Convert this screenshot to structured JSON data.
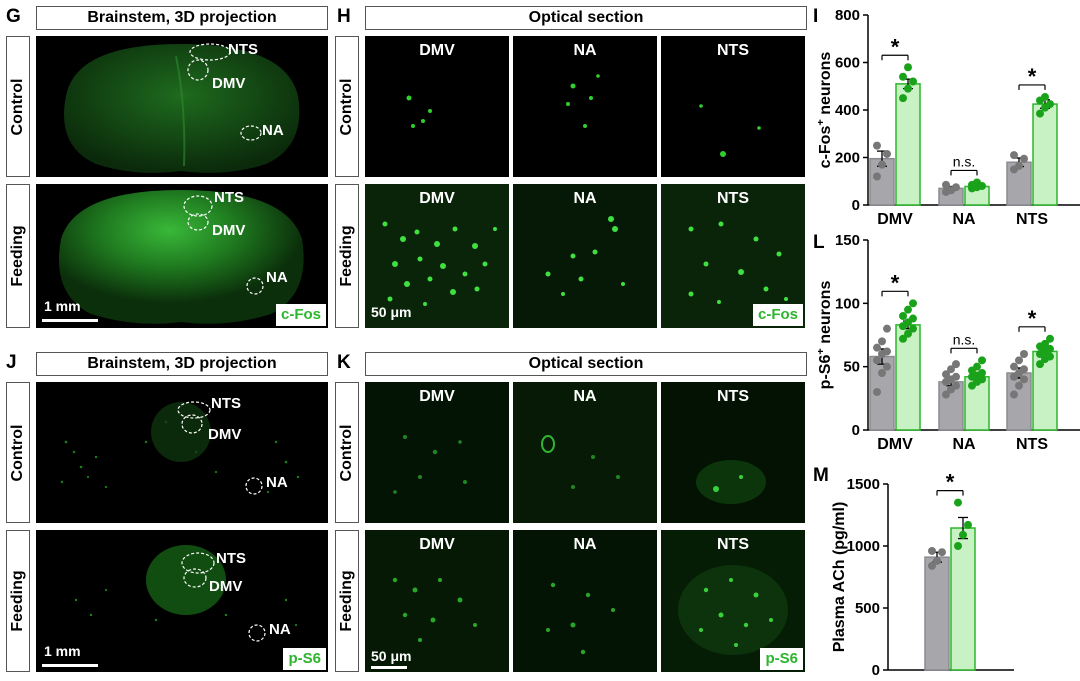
{
  "panel_labels": {
    "G": "G",
    "H": "H",
    "I": "I",
    "J": "J",
    "K": "K",
    "L": "L",
    "M": "M"
  },
  "titles": {
    "g": "Brainstem, 3D projection",
    "h": "Optical section",
    "j": "Brainstem, 3D projection",
    "k": "Optical section"
  },
  "row_labels": {
    "control": "Control",
    "feeding": "Feeding"
  },
  "regions": {
    "nts": "NTS",
    "dmv": "DMV",
    "na": "NA"
  },
  "columns": [
    "DMV",
    "NA",
    "NTS"
  ],
  "markers": {
    "cfos": "c-Fos",
    "ps6": "p-S6"
  },
  "scales": {
    "brain": "1 mm",
    "section": "50 μm"
  },
  "colors": {
    "control_bar": "#a6a6ab",
    "feeding_bar": "#c9f2c4",
    "feeding_edge": "#2db52d",
    "control_dot": "#777777",
    "feeding_dot": "#1aa31a",
    "fluor": "#2fd02f"
  },
  "chart_data": [
    {
      "type": "bar",
      "panel": "I",
      "ylabel": "c-Fos⁺ neurons",
      "ylabel_main": "c-Fos",
      "ylabel_sup": "+",
      "ylabel_tail": " neurons",
      "ylim": [
        0,
        800
      ],
      "yticks": [
        0,
        200,
        400,
        600,
        800
      ],
      "categories": [
        "DMV",
        "NA",
        "NTS"
      ],
      "series": [
        {
          "role": "control",
          "values": [
            195,
            70,
            180
          ],
          "sem": [
            32,
            8,
            18
          ],
          "points": [
            [
              120,
              170,
              215,
              250
            ],
            [
              55,
              62,
              75,
              85
            ],
            [
              150,
              165,
              195,
              210
            ]
          ]
        },
        {
          "role": "feeding",
          "values": [
            510,
            78,
            425
          ],
          "sem": [
            20,
            8,
            18
          ],
          "points": [
            [
              450,
              490,
              520,
              540,
              580
            ],
            [
              70,
              75,
              80,
              85,
              95
            ],
            [
              385,
              410,
              425,
              440,
              455
            ]
          ]
        }
      ],
      "significance": [
        "*",
        "n.s.",
        "*"
      ]
    },
    {
      "type": "bar",
      "panel": "L",
      "ylabel": "p-S6⁺ neurons",
      "ylabel_main": "p-S6",
      "ylabel_sup": "+",
      "ylabel_tail": " neurons",
      "ylim": [
        0,
        150
      ],
      "yticks": [
        0,
        50,
        100,
        150
      ],
      "categories": [
        "DMV",
        "NA",
        "NTS"
      ],
      "series": [
        {
          "role": "control",
          "values": [
            58,
            38,
            45
          ],
          "sem": [
            6,
            3,
            4
          ],
          "points": [
            [
              30,
              45,
              50,
              55,
              60,
              62,
              65,
              70,
              80
            ],
            [
              28,
              32,
              35,
              38,
              40,
              42,
              44,
              48,
              52
            ],
            [
              28,
              35,
              40,
              42,
              45,
              48,
              50,
              55,
              60
            ]
          ]
        },
        {
          "role": "feeding",
          "values": [
            83,
            42,
            62
          ],
          "sem": [
            3,
            2,
            2
          ],
          "points": [
            [
              72,
              76,
              80,
              82,
              85,
              88,
              90,
              95,
              100
            ],
            [
              35,
              38,
              40,
              42,
              43,
              45,
              47,
              50,
              55
            ],
            [
              52,
              56,
              58,
              60,
              62,
              64,
              66,
              68,
              72
            ]
          ]
        }
      ],
      "significance": [
        "*",
        "n.s.",
        "*"
      ]
    },
    {
      "type": "bar",
      "panel": "M",
      "ylabel": "Plasma ACh (pg/ml)",
      "ylim": [
        0,
        1500
      ],
      "yticks": [
        0,
        500,
        1000,
        1500
      ],
      "categories": [
        ""
      ],
      "series": [
        {
          "role": "control",
          "values": [
            910
          ],
          "sem": [
            40
          ],
          "points": [
            [
              840,
              880,
              950,
              960
            ]
          ]
        },
        {
          "role": "feeding",
          "values": [
            1145
          ],
          "sem": [
            85
          ],
          "points": [
            [
              1000,
              1090,
              1170,
              1350
            ]
          ]
        }
      ],
      "significance": [
        "*"
      ]
    }
  ]
}
